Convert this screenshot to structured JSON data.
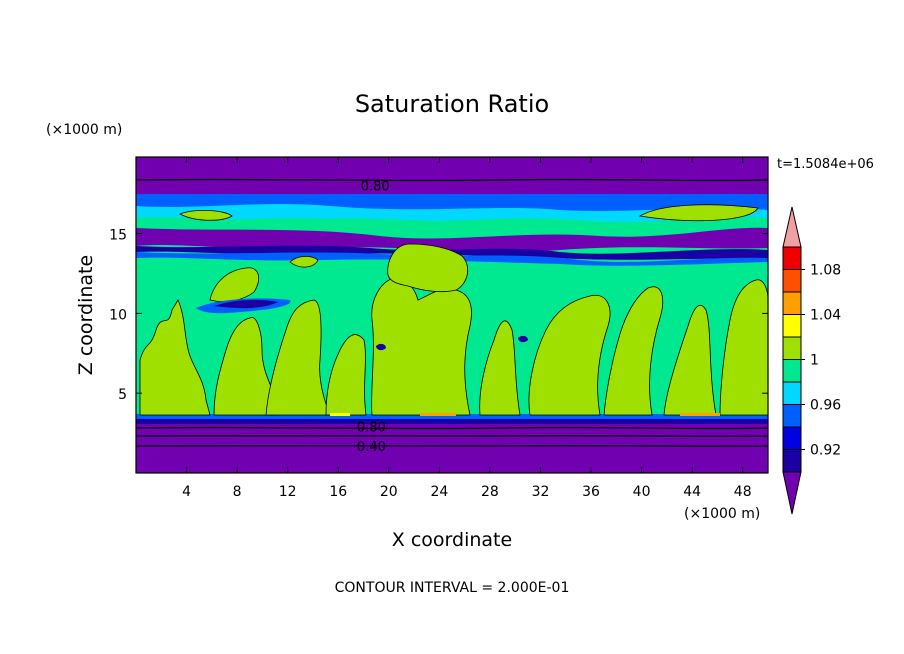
{
  "chart_data": {
    "type": "heatmap",
    "title": "Saturation Ratio",
    "xlabel": "X coordinate",
    "ylabel": "Z coordinate",
    "x_unit": "(×1000 m)",
    "y_unit": "(×1000 m)",
    "xlim": [
      0,
      50
    ],
    "ylim": [
      0,
      19.8
    ],
    "x_ticks": [
      "4",
      "8",
      "12",
      "16",
      "20",
      "24",
      "28",
      "32",
      "36",
      "40",
      "44",
      "48"
    ],
    "y_ticks": [
      "5",
      "10",
      "15"
    ],
    "time_label": "t=1.5084e+06",
    "footer": "CONTOUR INTERVAL = 2.000E-01",
    "colorbar": {
      "labels": [
        "0.92",
        "0.96",
        "1",
        "1.04",
        "1.08"
      ],
      "levels": [
        0.9,
        0.92,
        0.94,
        0.96,
        0.98,
        1.0,
        1.02,
        1.04,
        1.06,
        1.08,
        1.1
      ],
      "colors": [
        "#7000b0",
        "#1a00a0",
        "#0000e0",
        "#0060ff",
        "#00d8ff",
        "#00e890",
        "#a0e000",
        "#ffff00",
        "#ffa000",
        "#ff5000",
        "#f00000",
        "#f0a0a0"
      ]
    },
    "contour_labels": [
      {
        "text": "0.80",
        "x": 17.5,
        "z": 18.0
      },
      {
        "text": "0.80",
        "x": 17.2,
        "z": 2.9
      },
      {
        "text": "0.40",
        "x": 17.2,
        "z": 1.7
      }
    ],
    "bands": [
      {
        "z0": 0.0,
        "z1": 3.2,
        "level": "<0.9"
      },
      {
        "z0": 3.2,
        "z1": 3.5,
        "level": "0.92-0.96"
      },
      {
        "z0": 3.5,
        "z1": 13.8,
        "level": "0.98-1.02"
      },
      {
        "z0": 13.8,
        "z1": 15.8,
        "level": "<0.96"
      },
      {
        "z0": 15.8,
        "z1": 17.2,
        "level": "0.96-1.0"
      },
      {
        "z0": 17.2,
        "z1": 19.8,
        "level": "<0.9"
      }
    ]
  }
}
